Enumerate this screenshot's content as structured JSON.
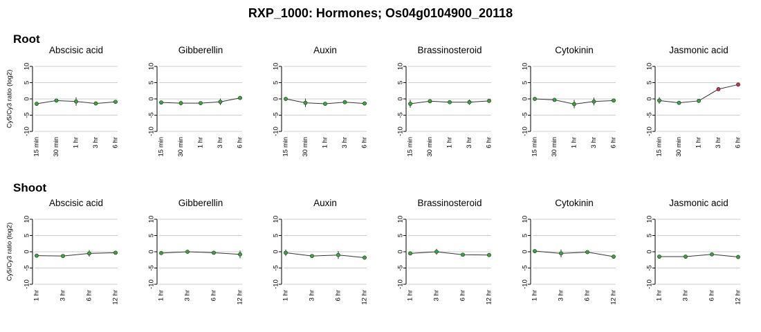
{
  "title": "RXP_1000: Hormones; Os04g0104900_20118",
  "sections": [
    {
      "label": "Root"
    },
    {
      "label": "Shoot"
    }
  ],
  "ylabel": "Cy5/Cy3 ratio (log2)",
  "colors": {
    "grid": "#cccccc",
    "axis": "#000000",
    "line": "#333333",
    "point_low": "#33aa33",
    "point_high": "#cc3344",
    "error": "#333333"
  },
  "chart_data": [
    {
      "type": "line",
      "row": 0,
      "title": "Abscisic acid",
      "x": [
        "15 min",
        "30 min",
        "1 hr",
        "3 hr",
        "6 hr"
      ],
      "ylim": [
        -10,
        10
      ],
      "yticks": [
        -10,
        -5,
        0,
        5,
        10
      ],
      "grid": true,
      "series": [
        {
          "values": [
            -1.5,
            -0.5,
            -0.8,
            -1.4,
            -0.9
          ],
          "err": [
            0.5,
            0.4,
            1.3,
            0.3,
            0.4
          ]
        }
      ]
    },
    {
      "type": "line",
      "row": 0,
      "title": "Gibberellin",
      "x": [
        "15 min",
        "30 min",
        "1 hr",
        "3 hr",
        "6 hr"
      ],
      "ylim": [
        -10,
        10
      ],
      "yticks": [
        -10,
        -5,
        0,
        5,
        10
      ],
      "grid": true,
      "series": [
        {
          "values": [
            -1.1,
            -1.3,
            -1.3,
            -0.9,
            0.3
          ],
          "err": [
            0.4,
            0.7,
            0.4,
            1.0,
            0.6
          ]
        }
      ]
    },
    {
      "type": "line",
      "row": 0,
      "title": "Auxin",
      "x": [
        "15 min",
        "30 min",
        "1 hr",
        "3 hr",
        "6 hr"
      ],
      "ylim": [
        -10,
        10
      ],
      "yticks": [
        -10,
        -5,
        0,
        5,
        10
      ],
      "grid": true,
      "series": [
        {
          "values": [
            0.0,
            -1.2,
            -1.5,
            -1.0,
            -1.4
          ],
          "err": [
            0.5,
            1.3,
            0.5,
            0.3,
            0.3
          ]
        }
      ]
    },
    {
      "type": "line",
      "row": 0,
      "title": "Brassinosteroid",
      "x": [
        "15 min",
        "30 min",
        "1 hr",
        "3 hr",
        "6 hr"
      ],
      "ylim": [
        -10,
        10
      ],
      "yticks": [
        -10,
        -5,
        0,
        5,
        10
      ],
      "grid": true,
      "series": [
        {
          "values": [
            -1.5,
            -0.7,
            -1.0,
            -1.0,
            -0.6
          ],
          "err": [
            1.2,
            0.4,
            0.3,
            0.8,
            0.5
          ]
        }
      ]
    },
    {
      "type": "line",
      "row": 0,
      "title": "Cytokinin",
      "x": [
        "15 min",
        "30 min",
        "1 hr",
        "3 hr",
        "6 hr"
      ],
      "ylim": [
        -10,
        10
      ],
      "yticks": [
        -10,
        -5,
        0,
        5,
        10
      ],
      "grid": true,
      "series": [
        {
          "values": [
            0.0,
            -0.3,
            -1.6,
            -0.8,
            -0.5
          ],
          "err": [
            0.3,
            0.5,
            1.3,
            1.2,
            0.3
          ]
        }
      ]
    },
    {
      "type": "line",
      "row": 0,
      "title": "Jasmonic acid",
      "x": [
        "15 min",
        "30 min",
        "1 hr",
        "3 hr",
        "6 hr"
      ],
      "ylim": [
        -10,
        10
      ],
      "yticks": [
        -10,
        -5,
        0,
        5,
        10
      ],
      "grid": true,
      "series": [
        {
          "values": [
            -0.5,
            -1.2,
            -0.6,
            3.0,
            4.4
          ],
          "err": [
            1.0,
            0.4,
            0.3,
            0.4,
            0.3
          ]
        }
      ]
    },
    {
      "type": "line",
      "row": 1,
      "title": "Abscisic acid",
      "x": [
        "1 hr",
        "3 hr",
        "6 hr",
        "12 hr"
      ],
      "ylim": [
        -10,
        10
      ],
      "yticks": [
        -10,
        -5,
        0,
        5,
        10
      ],
      "grid": true,
      "series": [
        {
          "values": [
            -1.2,
            -1.3,
            -0.5,
            -0.3
          ],
          "err": [
            0.4,
            0.3,
            1.0,
            0.4
          ]
        }
      ]
    },
    {
      "type": "line",
      "row": 1,
      "title": "Gibberellin",
      "x": [
        "1 hr",
        "3 hr",
        "6 hr",
        "12 hr"
      ],
      "ylim": [
        -10,
        10
      ],
      "yticks": [
        -10,
        -5,
        0,
        5,
        10
      ],
      "grid": true,
      "series": [
        {
          "values": [
            -0.4,
            0.0,
            -0.3,
            -0.8
          ],
          "err": [
            0.4,
            0.3,
            0.3,
            1.2
          ]
        }
      ]
    },
    {
      "type": "line",
      "row": 1,
      "title": "Auxin",
      "x": [
        "1 hr",
        "3 hr",
        "6 hr",
        "12 hr"
      ],
      "ylim": [
        -10,
        10
      ],
      "yticks": [
        -10,
        -5,
        0,
        5,
        10
      ],
      "grid": true,
      "series": [
        {
          "values": [
            -0.3,
            -1.3,
            -1.0,
            -1.8
          ],
          "err": [
            1.0,
            0.3,
            1.2,
            0.3
          ]
        }
      ]
    },
    {
      "type": "line",
      "row": 1,
      "title": "Brassinosteroid",
      "x": [
        "1 hr",
        "3 hr",
        "6 hr",
        "12 hr"
      ],
      "ylim": [
        -10,
        10
      ],
      "yticks": [
        -10,
        -5,
        0,
        5,
        10
      ],
      "grid": true,
      "series": [
        {
          "values": [
            -0.5,
            0.0,
            -0.9,
            -1.0
          ],
          "err": [
            0.3,
            0.9,
            0.4,
            0.3
          ]
        }
      ]
    },
    {
      "type": "line",
      "row": 1,
      "title": "Cytokinin",
      "x": [
        "1 hr",
        "3 hr",
        "6 hr",
        "12 hr"
      ],
      "ylim": [
        -10,
        10
      ],
      "yticks": [
        -10,
        -5,
        0,
        5,
        10
      ],
      "grid": true,
      "series": [
        {
          "values": [
            0.2,
            -0.5,
            -0.1,
            -1.5
          ],
          "err": [
            0.3,
            1.2,
            0.3,
            0.3
          ]
        }
      ]
    },
    {
      "type": "line",
      "row": 1,
      "title": "Jasmonic acid",
      "x": [
        "1 hr",
        "3 hr",
        "6 hr",
        "12 hr"
      ],
      "ylim": [
        -10,
        10
      ],
      "yticks": [
        -10,
        -5,
        0,
        5,
        10
      ],
      "grid": true,
      "series": [
        {
          "values": [
            -1.5,
            -1.5,
            -0.8,
            -1.6
          ],
          "err": [
            0.3,
            0.3,
            0.4,
            0.3
          ]
        }
      ]
    }
  ]
}
